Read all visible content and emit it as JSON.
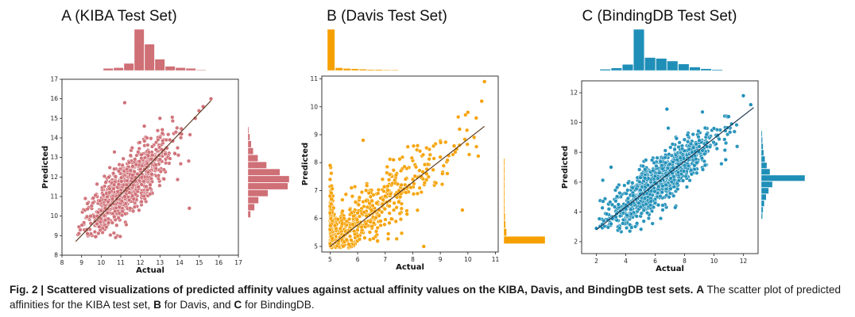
{
  "colors": {
    "kiba": "#cf6f76",
    "davis": "#f5a000",
    "bindingdb": "#1f8fb8",
    "axis": "#222222"
  },
  "charts": [
    {
      "type": "scatter",
      "title": "A (KIBA Test Set)",
      "xlabel": "Actual",
      "ylabel": "Predicted",
      "xlim": [
        8,
        17
      ],
      "ylim": [
        8,
        17
      ],
      "xticks": [
        8,
        9,
        10,
        11,
        12,
        13,
        14,
        15,
        16,
        17
      ],
      "yticks": [
        8,
        9,
        10,
        11,
        12,
        13,
        14,
        15,
        16,
        17
      ],
      "fit_line": [
        [
          8.7,
          8.7
        ],
        [
          15.6,
          15.9
        ]
      ],
      "marginal_x_counts": [
        3,
        4,
        10,
        58,
        37,
        16,
        6,
        4,
        3,
        1
      ],
      "marginal_y_counts": [
        4,
        10,
        16,
        30,
        60,
        62,
        48,
        28,
        15,
        8,
        5,
        3,
        1
      ],
      "sample_points": [
        [
          11.2,
          11.0
        ],
        [
          11.6,
          12.1
        ],
        [
          12.0,
          12.4
        ],
        [
          11.3,
          11.6
        ],
        [
          12.4,
          13.1
        ],
        [
          13.0,
          12.9
        ],
        [
          11.9,
          11.5
        ],
        [
          12.8,
          13.4
        ],
        [
          13.5,
          13.9
        ],
        [
          14.1,
          14.2
        ],
        [
          14.8,
          15.0
        ],
        [
          15.2,
          15.6
        ],
        [
          10.2,
          10.4
        ],
        [
          9.8,
          10.0
        ],
        [
          9.3,
          9.1
        ],
        [
          10.9,
          12.3
        ],
        [
          11.5,
          13.1
        ],
        [
          11.2,
          15.8
        ],
        [
          12.5,
          11.6
        ],
        [
          13.2,
          11.9
        ],
        [
          14.5,
          10.4
        ],
        [
          15.6,
          16.0
        ],
        [
          12.2,
          14.6
        ],
        [
          13.0,
          15.0
        ]
      ]
    },
    {
      "type": "scatter",
      "title": "B (Davis Test Set)",
      "xlabel": "Actual",
      "ylabel": "Predicted",
      "xlim": [
        4.7,
        11.1
      ],
      "ylim": [
        4.8,
        11.1
      ],
      "xticks": [
        5,
        6,
        7,
        8,
        9,
        10,
        11
      ],
      "yticks": [
        5,
        6,
        7,
        8,
        9,
        10,
        11
      ],
      "fit_line": [
        [
          5.0,
          5.0
        ],
        [
          10.6,
          9.3
        ]
      ],
      "marginal_x_counts": [
        120,
        8,
        6,
        5,
        4,
        3,
        3,
        2,
        2,
        1,
        1
      ],
      "marginal_y_counts": [
        120,
        8,
        5,
        4,
        3,
        2,
        2,
        1,
        1,
        1,
        1
      ],
      "sample_points": [
        [
          5.0,
          5.1
        ],
        [
          5.0,
          5.6
        ],
        [
          5.0,
          6.2
        ],
        [
          5.0,
          6.8
        ],
        [
          5.0,
          7.4
        ],
        [
          5.0,
          7.9
        ],
        [
          5.5,
          5.4
        ],
        [
          6.0,
          6.2
        ],
        [
          6.5,
          6.3
        ],
        [
          7.0,
          6.8
        ],
        [
          7.5,
          7.0
        ],
        [
          8.0,
          7.4
        ],
        [
          8.5,
          7.6
        ],
        [
          9.0,
          8.2
        ],
        [
          9.5,
          8.6
        ],
        [
          9.7,
          9.2
        ],
        [
          10.0,
          9.8
        ],
        [
          10.6,
          10.9
        ],
        [
          10.5,
          10.2
        ],
        [
          10.3,
          9.6
        ],
        [
          8.4,
          5.0
        ],
        [
          9.8,
          6.3
        ],
        [
          6.2,
          8.8
        ],
        [
          7.3,
          8.1
        ]
      ]
    },
    {
      "type": "scatter",
      "title": "C (BindingDB Test Set)",
      "xlabel": "Actual",
      "ylabel": "Predicted",
      "xlim": [
        1,
        13
      ],
      "ylim": [
        1.2,
        12.8
      ],
      "xticks": [
        2,
        4,
        6,
        8,
        10,
        12
      ],
      "yticks": [
        2,
        4,
        6,
        8,
        10,
        12
      ],
      "fit_line": [
        [
          2.0,
          2.8
        ],
        [
          12.7,
          11.0
        ]
      ],
      "marginal_x_counts": [
        3,
        6,
        14,
        95,
        30,
        28,
        22,
        15,
        8,
        4,
        2
      ],
      "marginal_y_counts": [
        2,
        3,
        5,
        8,
        12,
        18,
        70,
        14,
        9,
        6,
        4,
        3,
        2,
        1
      ],
      "sample_points": [
        [
          2.0,
          2.9
        ],
        [
          2.5,
          3.4
        ],
        [
          3.0,
          3.2
        ],
        [
          3.5,
          4.5
        ],
        [
          4.0,
          4.2
        ],
        [
          4.5,
          5.1
        ],
        [
          5.0,
          5.2
        ],
        [
          5.0,
          6.3
        ],
        [
          5.5,
          5.8
        ],
        [
          6.0,
          6.4
        ],
        [
          6.5,
          6.9
        ],
        [
          7.0,
          7.2
        ],
        [
          7.5,
          7.5
        ],
        [
          8.0,
          8.1
        ],
        [
          8.5,
          8.0
        ],
        [
          9.0,
          8.8
        ],
        [
          9.5,
          9.2
        ],
        [
          10.0,
          9.6
        ],
        [
          11.0,
          10.4
        ],
        [
          12.0,
          11.8
        ],
        [
          12.5,
          11.2
        ],
        [
          6.8,
          10.9
        ],
        [
          10.8,
          7.5
        ],
        [
          3.0,
          7.0
        ]
      ]
    }
  ],
  "caption": {
    "lead": "Fig. 2 | Scattered visualizations of predicted affinity values against actual affinity values on the KIBA, Davis, and BindingDB test sets.",
    "p1": " ",
    "a": "A",
    "p2": " The scatter plot of predicted affinities for the KIBA test set, ",
    "b": "B",
    "p3": " for Davis, and ",
    "c": "C",
    "p4": " for BindingDB."
  }
}
